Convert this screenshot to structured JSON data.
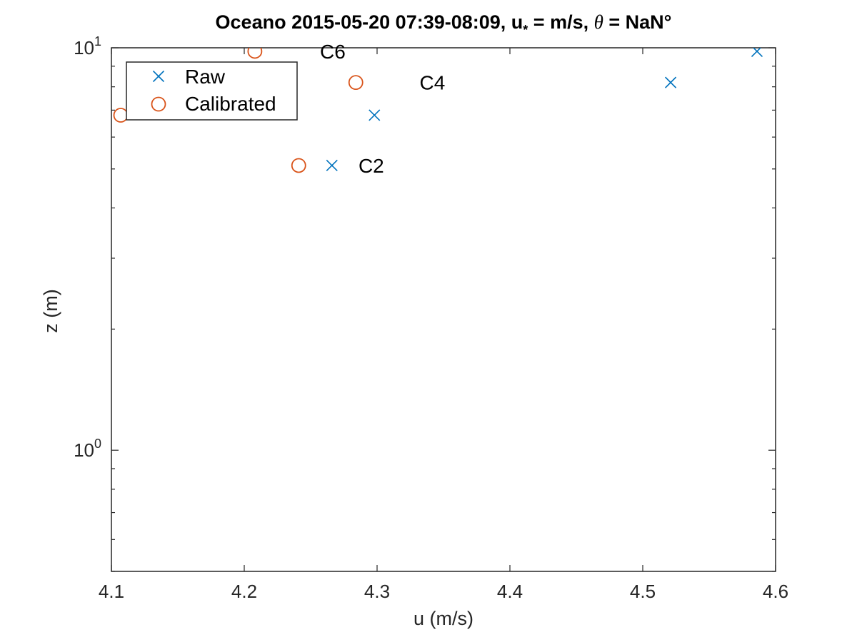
{
  "chart_data": {
    "type": "scatter",
    "title": {
      "prefix": "Oceano 2015-05-20 07:39-08:09, u",
      "subscript": "*",
      "middle": " =  m/s, ",
      "theta": "θ",
      "suffix": " = NaN°"
    },
    "xlabel": "u (m/s)",
    "ylabel": "z (m)",
    "xlim": [
      4.1,
      4.6
    ],
    "ylim": [
      0.5,
      10
    ],
    "yscale": "log",
    "xticks": [
      "4.1",
      "4.2",
      "4.3",
      "4.4",
      "4.5",
      "4.6"
    ],
    "yticks": [
      {
        "base": "10",
        "exp": "0",
        "value": 1
      },
      {
        "base": "10",
        "exp": "1",
        "value": 10
      }
    ],
    "grid": false,
    "legend_position": "top-left",
    "colors": {
      "raw": "#0072BD",
      "calibrated": "#D95319"
    },
    "series": [
      {
        "name": "Raw",
        "marker": "x",
        "points": [
          {
            "x": 4.266,
            "y": 5.1
          },
          {
            "x": 4.298,
            "y": 6.8
          },
          {
            "x": 4.521,
            "y": 8.2
          },
          {
            "x": 4.586,
            "y": 9.8
          }
        ]
      },
      {
        "name": "Calibrated",
        "marker": "o",
        "points": [
          {
            "x": 4.241,
            "y": 5.1
          },
          {
            "x": 4.107,
            "y": 6.8
          },
          {
            "x": 4.284,
            "y": 8.2
          },
          {
            "x": 4.208,
            "y": 9.8
          }
        ]
      }
    ],
    "annotations": [
      {
        "text": "C2",
        "x": 4.286,
        "y": 5.1
      },
      {
        "text": "C4",
        "x": 4.332,
        "y": 8.2
      },
      {
        "text": "C6",
        "x": 4.257,
        "y": 9.8
      }
    ]
  }
}
